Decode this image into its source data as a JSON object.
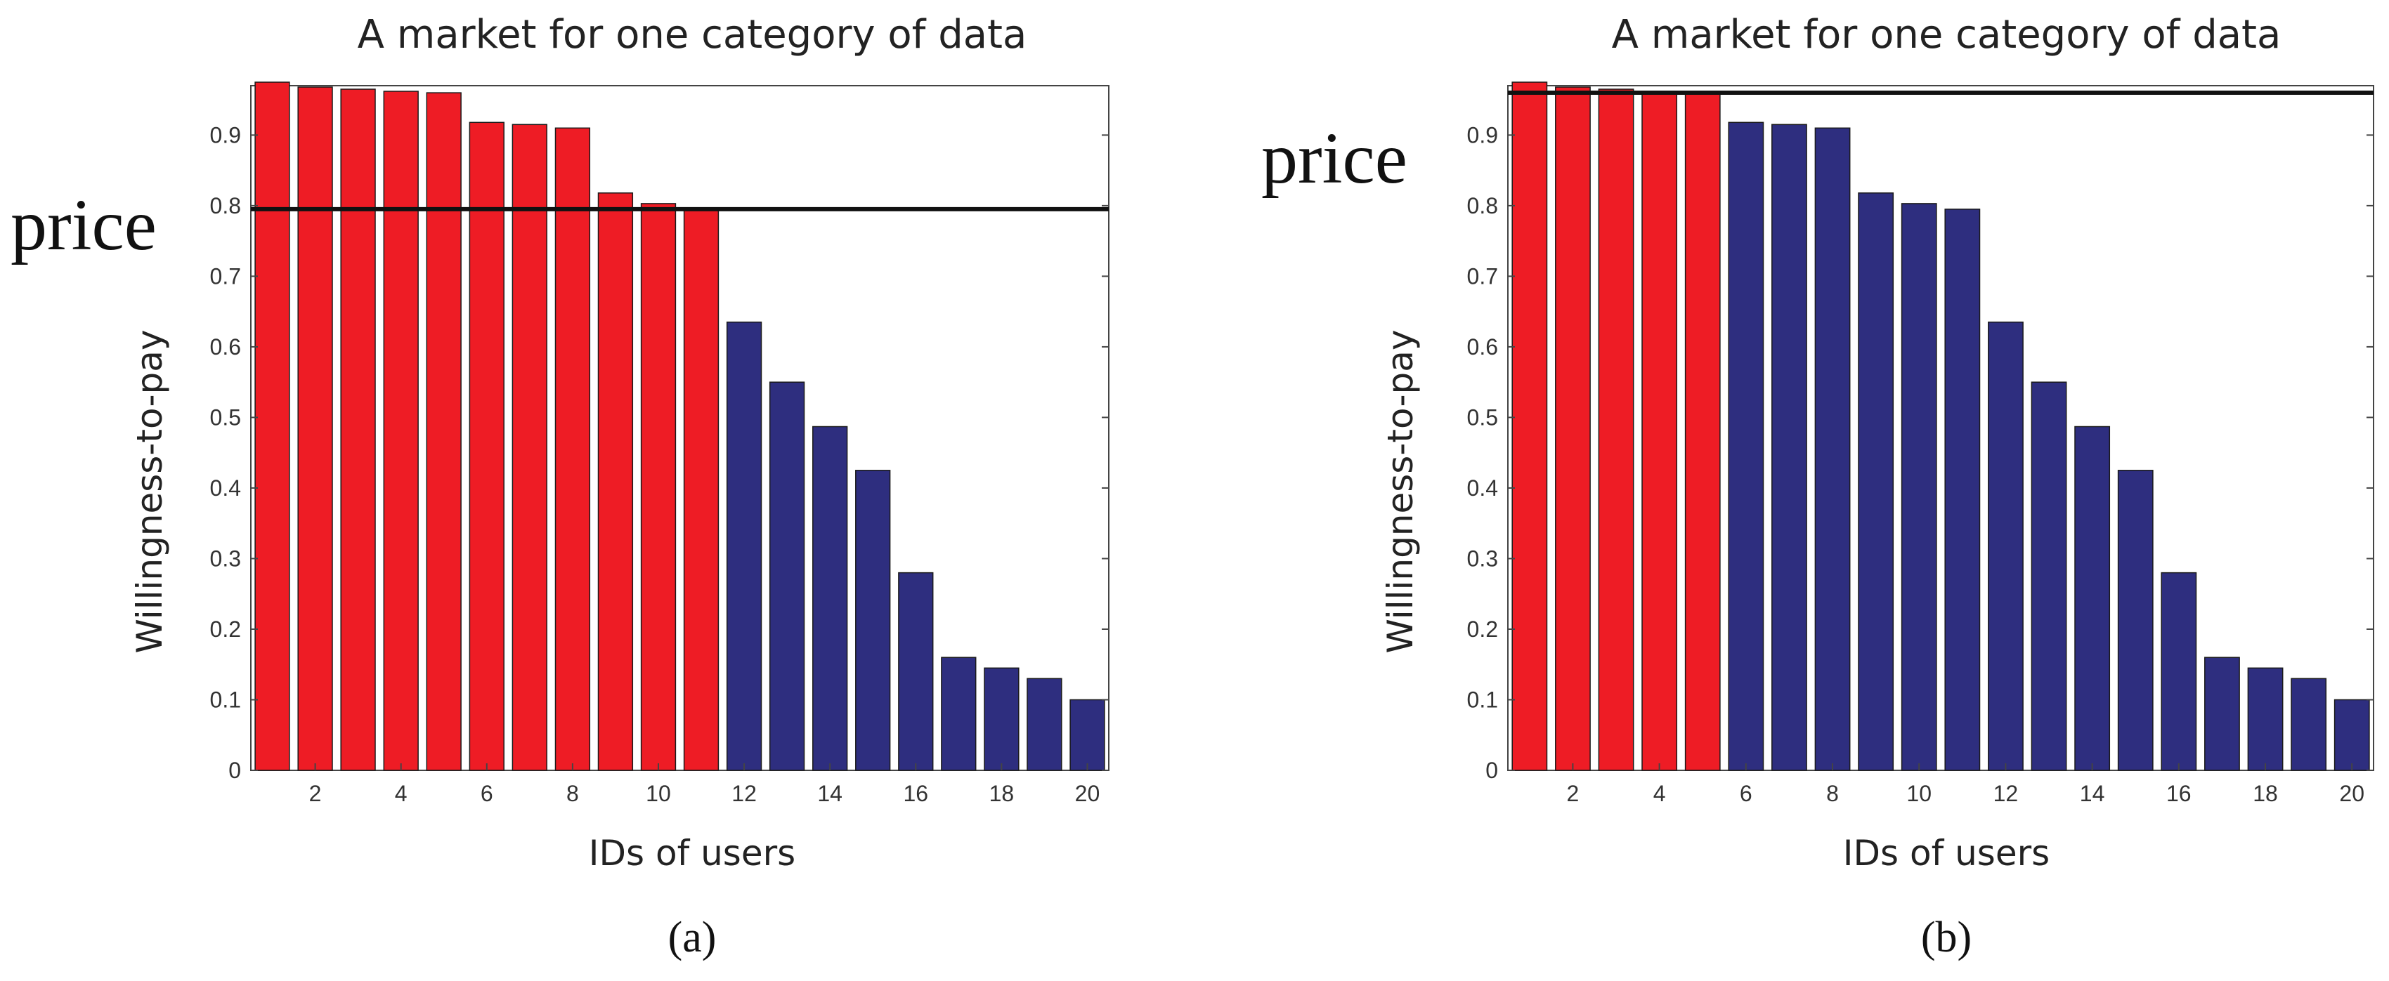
{
  "chart_data": [
    {
      "type": "bar",
      "panel": "(a)",
      "title": "A market for one category of data",
      "xlabel": "IDs of users",
      "ylabel": "Willingness-to-pay",
      "price_label": "price",
      "price": 0.795,
      "categories": [
        1,
        2,
        3,
        4,
        5,
        6,
        7,
        8,
        9,
        10,
        11,
        12,
        13,
        14,
        15,
        16,
        17,
        18,
        19,
        20
      ],
      "values": [
        0.975,
        0.968,
        0.965,
        0.962,
        0.96,
        0.918,
        0.915,
        0.91,
        0.818,
        0.803,
        0.795,
        0.635,
        0.55,
        0.487,
        0.425,
        0.28,
        0.16,
        0.145,
        0.13,
        0.1
      ],
      "highlight_count": 11,
      "xticks": [
        2,
        4,
        6,
        8,
        10,
        12,
        14,
        16,
        18,
        20
      ],
      "yticks": [
        0,
        0.1,
        0.2,
        0.3,
        0.4,
        0.5,
        0.6,
        0.7,
        0.8,
        0.9
      ],
      "ylim": [
        0,
        0.97
      ],
      "colors": {
        "above_price": "#ee1c25",
        "below_price": "#2e2e7f",
        "price_line": "#111111"
      }
    },
    {
      "type": "bar",
      "panel": "(b)",
      "title": "A market for one category of data",
      "xlabel": "IDs of users",
      "ylabel": "Willingness-to-pay",
      "price_label": "price",
      "price": 0.96,
      "categories": [
        1,
        2,
        3,
        4,
        5,
        6,
        7,
        8,
        9,
        10,
        11,
        12,
        13,
        14,
        15,
        16,
        17,
        18,
        19,
        20
      ],
      "values": [
        0.975,
        0.968,
        0.965,
        0.962,
        0.96,
        0.918,
        0.915,
        0.91,
        0.818,
        0.803,
        0.795,
        0.635,
        0.55,
        0.487,
        0.425,
        0.28,
        0.16,
        0.145,
        0.13,
        0.1
      ],
      "highlight_count": 5,
      "xticks": [
        2,
        4,
        6,
        8,
        10,
        12,
        14,
        16,
        18,
        20
      ],
      "yticks": [
        0,
        0.1,
        0.2,
        0.3,
        0.4,
        0.5,
        0.6,
        0.7,
        0.8,
        0.9
      ],
      "ylim": [
        0,
        0.97
      ],
      "colors": {
        "above_price": "#ee1c25",
        "below_price": "#2e2e7f",
        "price_line": "#111111"
      }
    }
  ]
}
